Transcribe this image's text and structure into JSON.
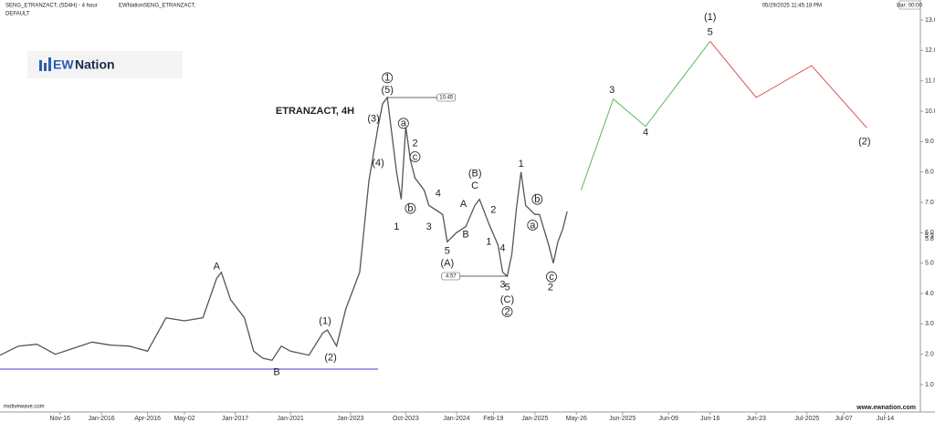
{
  "header": {
    "symbol": "SENG_ETRANZACT, (5D4H) - 4 hour",
    "study": "EWNationSENG_ETRANZACT,",
    "template": "DEFAULT",
    "datetime": "05/29/2025 11:45:18 PM",
    "bar_timer": "Bar: 00:00"
  },
  "logo": {
    "mark": "EW",
    "text": "Nation"
  },
  "footer": {
    "left": "motivewave.com",
    "right": "www.ewnation.com"
  },
  "chart_data": {
    "type": "line",
    "title": "ETRANZACT, 4H",
    "xlim": [
      0,
      200
    ],
    "ylim": [
      0.1,
      13.66
    ],
    "xticks": [
      {
        "value": 13,
        "label": "Nov-16"
      },
      {
        "value": 22,
        "label": "Jan-2016"
      },
      {
        "value": 32,
        "label": "Apr-2016"
      },
      {
        "value": 40,
        "label": "May-02"
      },
      {
        "value": 51,
        "label": "Jan-2017"
      },
      {
        "value": 63,
        "label": "Jan-2021"
      },
      {
        "value": 76,
        "label": "Jan-2023"
      },
      {
        "value": 88,
        "label": "Oct-2023"
      },
      {
        "value": 99,
        "label": "Jan-2024"
      },
      {
        "value": 107,
        "label": "Feb-19"
      },
      {
        "value": 116,
        "label": "Jan-2025"
      },
      {
        "value": 125,
        "label": "May-26"
      },
      {
        "value": 135,
        "label": "Jun-2025"
      },
      {
        "value": 145,
        "label": "Jun-09"
      },
      {
        "value": 154,
        "label": "Jun-16"
      },
      {
        "value": 164,
        "label": "Jun-23"
      },
      {
        "value": 175,
        "label": "Jul-2025"
      },
      {
        "value": 183,
        "label": "Jul-07"
      },
      {
        "value": 192,
        "label": "Jul-14"
      }
    ],
    "yticks": [
      {
        "value": 1,
        "label": "1.0"
      },
      {
        "value": 2,
        "label": "2.0"
      },
      {
        "value": 3,
        "label": "3.0"
      },
      {
        "value": 4,
        "label": "4.0"
      },
      {
        "value": 5,
        "label": "5.0"
      },
      {
        "value": 6,
        "label": "6.0"
      },
      {
        "value": 7,
        "label": "7.0"
      },
      {
        "value": 8,
        "label": "8.0"
      },
      {
        "value": 9,
        "label": "9.0"
      },
      {
        "value": 10,
        "label": "10.0"
      },
      {
        "value": 11,
        "label": "11.0"
      },
      {
        "value": 12,
        "label": "12.0"
      },
      {
        "value": 13,
        "label": "13.0"
      }
    ],
    "price": {
      "color": "#555555",
      "x": [
        0,
        4,
        8,
        12,
        16,
        20,
        24,
        28,
        32,
        36,
        40,
        44,
        47,
        48,
        50,
        53,
        55,
        57,
        59,
        61,
        63,
        67,
        70,
        71,
        73,
        75,
        78,
        80,
        82,
        83,
        84,
        86,
        87,
        88,
        89,
        90,
        92,
        93,
        96,
        97,
        99,
        101,
        103,
        104,
        106,
        108,
        109,
        110,
        111,
        112,
        113,
        114,
        116,
        117,
        119,
        120,
        121,
        122,
        123
      ],
      "values": [
        1.97,
        2.27,
        2.33,
        2.0,
        2.2,
        2.4,
        2.3,
        2.27,
        2.1,
        3.2,
        3.1,
        3.2,
        4.5,
        4.7,
        3.8,
        3.2,
        2.1,
        1.87,
        1.8,
        2.27,
        2.1,
        1.97,
        2.7,
        2.8,
        2.27,
        3.5,
        4.7,
        7.7,
        9.5,
        10.25,
        10.45,
        8.0,
        7.1,
        9.5,
        8.4,
        7.8,
        7.4,
        6.9,
        6.6,
        5.7,
        6.0,
        6.2,
        6.9,
        7.1,
        6.3,
        5.6,
        4.7,
        4.57,
        5.3,
        6.8,
        8.0,
        6.9,
        6.6,
        6.6,
        5.6,
        5.0,
        5.7,
        6.1,
        6.7
      ]
    },
    "projections": [
      {
        "color": "#5cb85c",
        "x": [
          126,
          133,
          140,
          154
        ],
        "values": [
          7.4,
          10.4,
          9.5,
          12.3
        ]
      },
      {
        "color": "#e05050",
        "x": [
          154,
          164,
          176,
          188
        ],
        "values": [
          12.3,
          10.45,
          11.5,
          9.45
        ]
      }
    ],
    "support": {
      "value": 1.51,
      "from": 0,
      "to": 82,
      "color": "#3b3bd6"
    },
    "levels": [
      {
        "value": 10.45,
        "label": "10.45",
        "from": 84,
        "to": 95
      },
      {
        "value": 4.57,
        "label": "4.57",
        "from": 96,
        "to": 110
      }
    ],
    "last_price": [
      {
        "value": 5.9,
        "label": "5.9"
      },
      {
        "value": 5.8,
        "label": "5.8"
      }
    ],
    "annotations": [
      {
        "text": "A",
        "x": 47,
        "y": 4.9
      },
      {
        "text": "B",
        "x": 60,
        "y": 1.42
      },
      {
        "text": "(1)",
        "x": 70.5,
        "y": 3.1
      },
      {
        "text": "(2)",
        "x": 71.7,
        "y": 1.9
      },
      {
        "text": "(3)",
        "x": 81,
        "y": 9.75
      },
      {
        "text": "(4)",
        "x": 82,
        "y": 8.3
      },
      {
        "text": "1",
        "x": 84,
        "y": 11.1,
        "circled": true
      },
      {
        "text": "(5)",
        "x": 84,
        "y": 10.7
      },
      {
        "text": "1",
        "x": 86,
        "y": 6.2
      },
      {
        "text": "a",
        "x": 87.5,
        "y": 9.6,
        "circled": true
      },
      {
        "text": "b",
        "x": 89,
        "y": 6.8,
        "circled": true
      },
      {
        "text": "2",
        "x": 90,
        "y": 8.95
      },
      {
        "text": "c",
        "x": 90,
        "y": 8.5,
        "circled": true
      },
      {
        "text": "3",
        "x": 93,
        "y": 6.2
      },
      {
        "text": "4",
        "x": 95,
        "y": 7.3
      },
      {
        "text": "5",
        "x": 97,
        "y": 5.4
      },
      {
        "text": "(A)",
        "x": 97,
        "y": 5.0
      },
      {
        "text": "(B)",
        "x": 103,
        "y": 7.95
      },
      {
        "text": "C",
        "x": 103,
        "y": 7.55
      },
      {
        "text": "A",
        "x": 100.5,
        "y": 6.95
      },
      {
        "text": "2",
        "x": 107,
        "y": 6.75
      },
      {
        "text": "B",
        "x": 101,
        "y": 5.95
      },
      {
        "text": "1",
        "x": 106,
        "y": 5.7
      },
      {
        "text": "4",
        "x": 109,
        "y": 5.5
      },
      {
        "text": "3",
        "x": 109,
        "y": 4.3
      },
      {
        "text": "5",
        "x": 110,
        "y": 4.2
      },
      {
        "text": "(C)",
        "x": 110,
        "y": 3.8
      },
      {
        "text": "2",
        "x": 110,
        "y": 3.4,
        "circled": true
      },
      {
        "text": "1",
        "x": 113,
        "y": 8.27
      },
      {
        "text": "b",
        "x": 116.5,
        "y": 7.1,
        "circled": true
      },
      {
        "text": "a",
        "x": 115.5,
        "y": 6.25,
        "circled": true
      },
      {
        "text": "c",
        "x": 119.6,
        "y": 4.55,
        "circled": true
      },
      {
        "text": "2",
        "x": 119.4,
        "y": 4.2
      },
      {
        "text": "3",
        "x": 132.7,
        "y": 10.7
      },
      {
        "text": "4",
        "x": 140,
        "y": 9.3
      },
      {
        "text": "5",
        "x": 154,
        "y": 12.6
      },
      {
        "text": "(1)",
        "x": 154,
        "y": 13.1
      },
      {
        "text": "(2)",
        "x": 187.5,
        "y": 9.0
      }
    ]
  }
}
